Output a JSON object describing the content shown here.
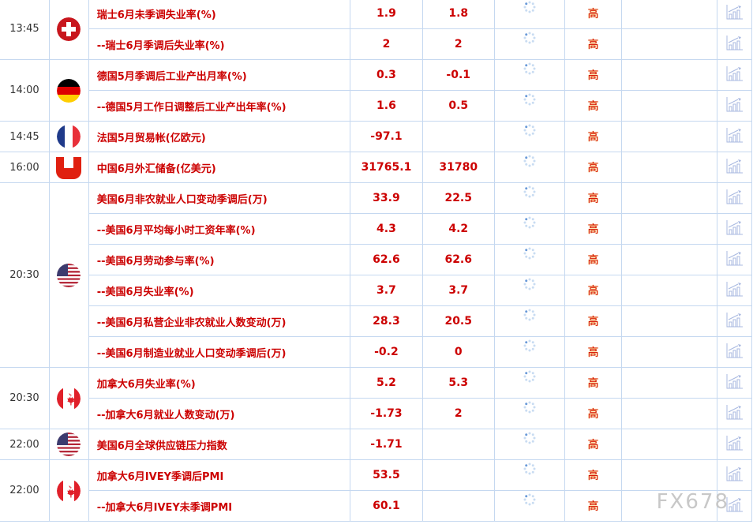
{
  "importance_label": "高",
  "watermark": "FX678",
  "colors": {
    "accent_red": "#cc0000",
    "border": "#c5d8f0"
  },
  "groups": [
    {
      "time": "13:45",
      "flag": "switzerland",
      "rows": [
        {
          "name": "瑞士6月未季调失业率(%)",
          "previous": "1.9",
          "forecast": "1.8"
        },
        {
          "name": "--瑞士6月季调后失业率(%)",
          "previous": "2",
          "forecast": "2"
        }
      ]
    },
    {
      "time": "14:00",
      "flag": "germany",
      "rows": [
        {
          "name": "德国5月季调后工业产出月率(%)",
          "previous": "0.3",
          "forecast": "-0.1"
        },
        {
          "name": "--德国5月工作日调整后工业产出年率(%)",
          "previous": "1.6",
          "forecast": "0.5"
        }
      ]
    },
    {
      "time": "14:45",
      "flag": "france",
      "rows": [
        {
          "name": "法国5月贸易帐(亿欧元)",
          "previous": "-97.1",
          "forecast": ""
        }
      ]
    },
    {
      "time": "16:00",
      "flag": "china",
      "rows": [
        {
          "name": "中国6月外汇储备(亿美元)",
          "previous": "31765.1",
          "forecast": "31780"
        }
      ]
    },
    {
      "time": "20:30",
      "flag": "usa",
      "rows": [
        {
          "name": "美国6月非农就业人口变动季调后(万)",
          "previous": "33.9",
          "forecast": "22.5"
        },
        {
          "name": "--美国6月平均每小时工资年率(%)",
          "previous": "4.3",
          "forecast": "4.2"
        },
        {
          "name": "--美国6月劳动参与率(%)",
          "previous": "62.6",
          "forecast": "62.6"
        },
        {
          "name": "--美国6月失业率(%)",
          "previous": "3.7",
          "forecast": "3.7"
        },
        {
          "name": "--美国6月私营企业非农就业人数变动(万)",
          "previous": "28.3",
          "forecast": "20.5"
        },
        {
          "name": "--美国6月制造业就业人口变动季调后(万)",
          "previous": "-0.2",
          "forecast": "0"
        }
      ]
    },
    {
      "time": "20:30",
      "flag": "canada",
      "rows": [
        {
          "name": "加拿大6月失业率(%)",
          "previous": "5.2",
          "forecast": "5.3"
        },
        {
          "name": "--加拿大6月就业人数变动(万)",
          "previous": "-1.73",
          "forecast": "2"
        }
      ]
    },
    {
      "time": "22:00",
      "flag": "usa",
      "rows": [
        {
          "name": "美国6月全球供应链压力指数",
          "previous": "-1.71",
          "forecast": ""
        }
      ]
    },
    {
      "time": "22:00",
      "flag": "canada",
      "rows": [
        {
          "name": "加拿大6月IVEY季调后PMI",
          "previous": "53.5",
          "forecast": ""
        },
        {
          "name": "--加拿大6月IVEY未季调PMI",
          "previous": "60.1",
          "forecast": ""
        }
      ]
    }
  ]
}
